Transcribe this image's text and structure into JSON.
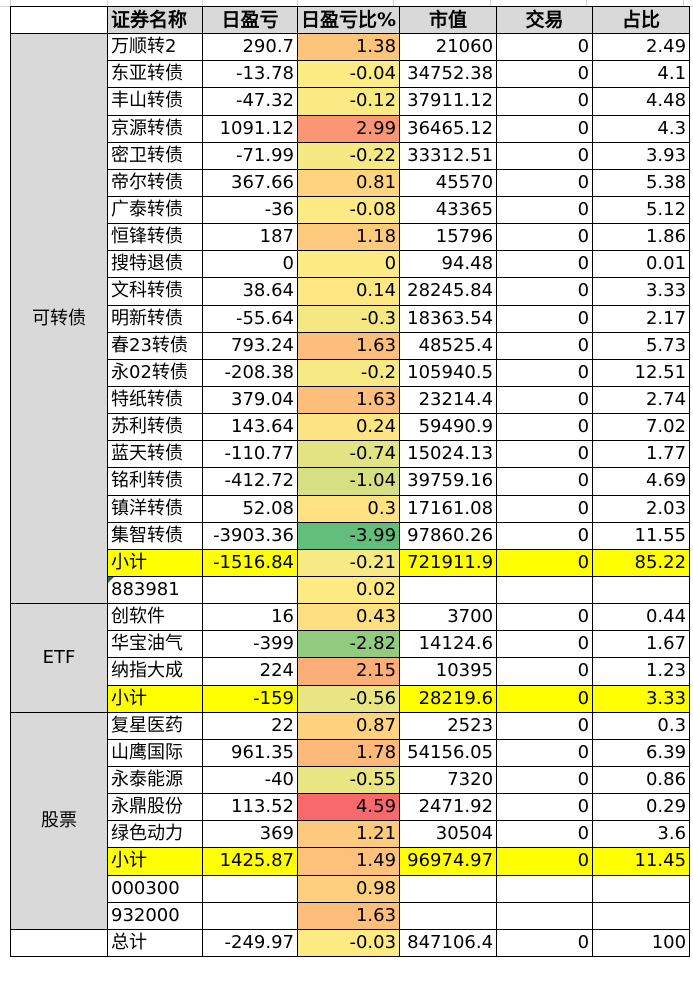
{
  "headers": [
    "",
    "证券名称",
    "日盈亏",
    "日盈亏比%",
    "市值",
    "交易",
    "占比"
  ],
  "color_scale": {
    "min_color": "#63BE7B",
    "mid_color": "#FFEB84",
    "max_color": "#F8696B",
    "subtotal_color": "#FFFF00",
    "header_color": "#D9D9D9"
  },
  "groups": [
    {
      "category": "可转债",
      "rows": [
        {
          "name": "万顺转2",
          "pnl": "290.7",
          "pct": "1.38",
          "mv": "21060",
          "trade": "0",
          "share": "2.49"
        },
        {
          "name": "东亚转债",
          "pnl": "-13.78",
          "pct": "-0.04",
          "mv": "34752.38",
          "trade": "0",
          "share": "4.1"
        },
        {
          "name": "丰山转债",
          "pnl": "-47.32",
          "pct": "-0.12",
          "mv": "37911.12",
          "trade": "0",
          "share": "4.48"
        },
        {
          "name": "京源转债",
          "pnl": "1091.12",
          "pct": "2.99",
          "mv": "36465.12",
          "trade": "0",
          "share": "4.3"
        },
        {
          "name": "密卫转债",
          "pnl": "-71.99",
          "pct": "-0.22",
          "mv": "33312.51",
          "trade": "0",
          "share": "3.93"
        },
        {
          "name": "帝尔转债",
          "pnl": "367.66",
          "pct": "0.81",
          "mv": "45570",
          "trade": "0",
          "share": "5.38"
        },
        {
          "name": "广泰转债",
          "pnl": "-36",
          "pct": "-0.08",
          "mv": "43365",
          "trade": "0",
          "share": "5.12"
        },
        {
          "name": "恒锋转债",
          "pnl": "187",
          "pct": "1.18",
          "mv": "15796",
          "trade": "0",
          "share": "1.86"
        },
        {
          "name": "搜特退债",
          "pnl": "0",
          "pct": "0",
          "mv": "94.48",
          "trade": "0",
          "share": "0.01"
        },
        {
          "name": "文科转债",
          "pnl": "38.64",
          "pct": "0.14",
          "mv": "28245.84",
          "trade": "0",
          "share": "3.33"
        },
        {
          "name": "明新转债",
          "pnl": "-55.64",
          "pct": "-0.3",
          "mv": "18363.54",
          "trade": "0",
          "share": "2.17"
        },
        {
          "name": "春23转债",
          "pnl": "793.24",
          "pct": "1.63",
          "mv": "48525.4",
          "trade": "0",
          "share": "5.73"
        },
        {
          "name": "永02转债",
          "pnl": "-208.38",
          "pct": "-0.2",
          "mv": "105940.5",
          "trade": "0",
          "share": "12.51"
        },
        {
          "name": "特纸转债",
          "pnl": "379.04",
          "pct": "1.63",
          "mv": "23214.4",
          "trade": "0",
          "share": "2.74"
        },
        {
          "name": "苏利转债",
          "pnl": "143.64",
          "pct": "0.24",
          "mv": "59490.9",
          "trade": "0",
          "share": "7.02"
        },
        {
          "name": "蓝天转债",
          "pnl": "-110.77",
          "pct": "-0.74",
          "mv": "15024.13",
          "trade": "0",
          "share": "1.77"
        },
        {
          "name": "铭利转债",
          "pnl": "-412.72",
          "pct": "-1.04",
          "mv": "39759.16",
          "trade": "0",
          "share": "4.69"
        },
        {
          "name": "镇洋转债",
          "pnl": "52.08",
          "pct": "0.3",
          "mv": "17161.08",
          "trade": "0",
          "share": "2.03"
        },
        {
          "name": "集智转债",
          "pnl": "-3903.36",
          "pct": "-3.99",
          "mv": "97860.26",
          "trade": "0",
          "share": "11.55"
        },
        {
          "name": "小计",
          "pnl": "-1516.84",
          "pct": "-0.21",
          "mv": "721911.9",
          "trade": "0",
          "share": "85.22",
          "subtotal": true
        },
        {
          "name": "883981",
          "pnl": "",
          "pct": "0.02",
          "mv": "",
          "trade": "",
          "share": "",
          "flag": true
        }
      ]
    },
    {
      "category": "ETF",
      "rows": [
        {
          "name": "创软件",
          "pnl": "16",
          "pct": "0.43",
          "mv": "3700",
          "trade": "0",
          "share": "0.44"
        },
        {
          "name": "华宝油气",
          "pnl": "-399",
          "pct": "-2.82",
          "mv": "14124.6",
          "trade": "0",
          "share": "1.67"
        },
        {
          "name": "纳指大成",
          "pnl": "224",
          "pct": "2.15",
          "mv": "10395",
          "trade": "0",
          "share": "1.23"
        },
        {
          "name": "小计",
          "pnl": "-159",
          "pct": "-0.56",
          "mv": "28219.6",
          "trade": "0",
          "share": "3.33",
          "subtotal": true
        }
      ]
    },
    {
      "category": "股票",
      "rows": [
        {
          "name": "复星医药",
          "pnl": "22",
          "pct": "0.87",
          "mv": "2523",
          "trade": "0",
          "share": "0.3"
        },
        {
          "name": "山鹰国际",
          "pnl": "961.35",
          "pct": "1.78",
          "mv": "54156.05",
          "trade": "0",
          "share": "6.39"
        },
        {
          "name": "永泰能源",
          "pnl": "-40",
          "pct": "-0.55",
          "mv": "7320",
          "trade": "0",
          "share": "0.86"
        },
        {
          "name": "永鼎股份",
          "pnl": "113.52",
          "pct": "4.59",
          "mv": "2471.92",
          "trade": "0",
          "share": "0.29"
        },
        {
          "name": "绿色动力",
          "pnl": "369",
          "pct": "1.21",
          "mv": "30504",
          "trade": "0",
          "share": "3.6"
        },
        {
          "name": "小计",
          "pnl": "1425.87",
          "pct": "1.49",
          "mv": "96974.97",
          "trade": "0",
          "share": "11.45",
          "subtotal": true
        },
        {
          "name": "000300",
          "pnl": "",
          "pct": "0.98",
          "mv": "",
          "trade": "",
          "share": ""
        },
        {
          "name": "932000",
          "pnl": "",
          "pct": "1.63",
          "mv": "",
          "trade": "",
          "share": ""
        }
      ]
    },
    {
      "category": "",
      "rows": [
        {
          "name": "总计",
          "pnl": "-249.97",
          "pct": "-0.03",
          "mv": "847106.4",
          "trade": "0",
          "share": "100",
          "total": true
        }
      ]
    }
  ]
}
